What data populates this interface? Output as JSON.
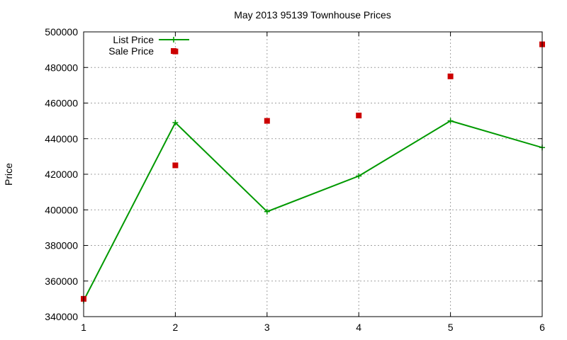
{
  "chart_data": {
    "type": "line",
    "title": "May 2013 95139 Townhouse Prices",
    "xlabel": "",
    "ylabel": "Price",
    "xlim": [
      1,
      6
    ],
    "ylim": [
      340000,
      500000
    ],
    "x_ticks": [
      1,
      2,
      3,
      4,
      5,
      6
    ],
    "y_ticks": [
      340000,
      360000,
      380000,
      400000,
      420000,
      440000,
      460000,
      480000,
      500000
    ],
    "grid": true,
    "legend_position": "top-left",
    "series": [
      {
        "name": "List Price",
        "kind": "line-points",
        "color": "#009900",
        "x": [
          1,
          2,
          3,
          4,
          5,
          6
        ],
        "values": [
          349000,
          449000,
          399000,
          419000,
          450000,
          435000
        ]
      },
      {
        "name": "Sale Price",
        "kind": "points",
        "color": "#cc0000",
        "x": [
          1,
          2,
          3,
          4,
          5,
          6
        ],
        "values": [
          350000,
          425000,
          450000,
          453000,
          475000,
          493000
        ]
      }
    ],
    "legend_extra_marker": {
      "series": "Sale Price",
      "x": 2,
      "y": 489000
    }
  }
}
